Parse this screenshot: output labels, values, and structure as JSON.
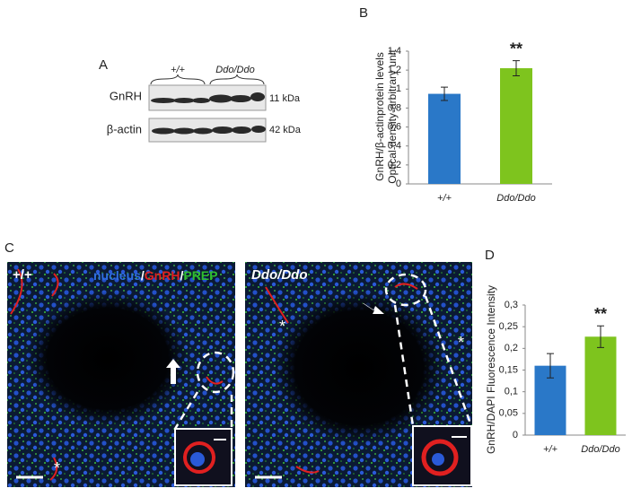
{
  "blot": {
    "panel_label": "A",
    "groups": [
      "+/+",
      "Ddo/Ddo"
    ],
    "rows": [
      {
        "name": "GnRH",
        "size": "11 kDa"
      },
      {
        "name": "β-actin",
        "size": "42 kDa"
      }
    ]
  },
  "micrographs": {
    "panel_label": "C",
    "left_label": "+/+",
    "right_label": "Ddo/Ddo",
    "stains": [
      {
        "text": "nucleus",
        "color": "#2f6fe0"
      },
      {
        "text": "GnRH",
        "color": "#e02020"
      },
      {
        "text": "PREP",
        "color": "#2fbf2f"
      }
    ],
    "separator": "/",
    "asterisk": "*"
  },
  "chart_data": [
    {
      "type": "bar",
      "panel_label": "B",
      "y_label": [
        "GnRH/β-actinprotein levels",
        "Optical density-arbitrary unit"
      ],
      "categories": [
        "+/+",
        "Ddo/Ddo"
      ],
      "values": [
        0.95,
        1.22
      ],
      "errors": [
        0.07,
        0.08
      ],
      "colors": [
        "#2a78c8",
        "#7ec41e"
      ],
      "ylim": [
        0,
        1.4
      ],
      "yticks": [
        0,
        {
          "value": 0.2,
          "label": "0,2"
        },
        {
          "value": 0.4,
          "label": "0,4"
        },
        {
          "value": 0.6,
          "label": "0,6"
        },
        {
          "value": 0.8,
          "label": "0,8"
        },
        1,
        {
          "value": 1.2,
          "label": "1,2"
        },
        {
          "value": 1.4,
          "label": "1,4"
        }
      ],
      "annotation": {
        "text": "**",
        "category": "Ddo/Ddo"
      }
    },
    {
      "type": "bar",
      "panel_label": "D",
      "y_label": [
        "GnRH/DAPI Fluorescence Intensity"
      ],
      "categories": [
        "+/+",
        "Ddo/Ddo"
      ],
      "values": [
        0.16,
        0.227
      ],
      "errors": [
        0.028,
        0.025
      ],
      "colors": [
        "#2a78c8",
        "#7ec41e"
      ],
      "ylim": [
        0,
        0.3
      ],
      "yticks": [
        0,
        {
          "value": 0.05,
          "label": "0,05"
        },
        {
          "value": 0.1,
          "label": "0,1"
        },
        {
          "value": 0.15,
          "label": "0,15"
        },
        {
          "value": 0.2,
          "label": "0,2"
        },
        {
          "value": 0.25,
          "label": "0,25"
        },
        {
          "value": 0.3,
          "label": "0,3"
        }
      ],
      "annotation": {
        "text": "**",
        "category": "Ddo/Ddo"
      }
    }
  ]
}
